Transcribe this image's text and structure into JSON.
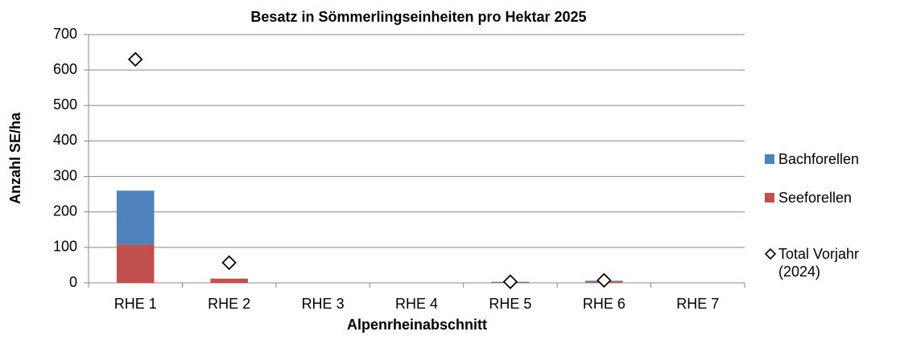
{
  "chart_data": {
    "type": "bar",
    "stacked": true,
    "title": "Besatz in Sömmerlingseinheiten pro Hektar 2025",
    "xlabel": "Alpenrheinabschnitt",
    "ylabel": "Anzahl SE/ha",
    "categories": [
      "RHE 1",
      "RHE 2",
      "RHE 3",
      "RHE 4",
      "RHE 5",
      "RHE 6",
      "RHE 7"
    ],
    "series": [
      {
        "name": "Seeforellen",
        "color": "#c0504d",
        "values": [
          108,
          12,
          0,
          0,
          1,
          2,
          0
        ]
      },
      {
        "name": "Bachforellen",
        "color": "#4f81bd",
        "values": [
          152,
          0,
          0,
          0,
          2,
          4,
          0
        ]
      },
      {
        "name": "Total Vorjahr (2024)",
        "type": "scatter",
        "marker": "diamond",
        "color": "#000000",
        "values": [
          630,
          57,
          null,
          null,
          3,
          7,
          null
        ]
      }
    ],
    "ylim": [
      0,
      700
    ],
    "yticks": [
      0,
      100,
      200,
      300,
      400,
      500,
      600,
      700
    ],
    "grid": true,
    "legend": "right"
  }
}
